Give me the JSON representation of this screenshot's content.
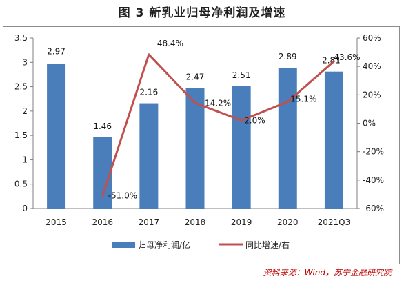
{
  "title": "图 3  新乳业归母净利润及增速",
  "source": "资料来源：Wind，苏宁金融研究院",
  "colors": {
    "bar": "#4a7ebb",
    "line": "#c0504d"
  },
  "chart_data": {
    "type": "bar",
    "categories": [
      "2015",
      "2016",
      "2017",
      "2018",
      "2019",
      "2020",
      "2021Q3"
    ],
    "series": [
      {
        "name": "归母净利润/亿",
        "type": "bar",
        "axis": "left",
        "values": [
          2.97,
          1.46,
          2.16,
          2.47,
          2.51,
          2.89,
          2.81
        ],
        "labels": [
          "2.97",
          "1.46",
          "2.16",
          "2.47",
          "2.51",
          "2.89",
          "2.81"
        ]
      },
      {
        "name": "同比增速/右",
        "type": "line",
        "axis": "right",
        "values": [
          null,
          -51.0,
          48.4,
          14.2,
          2.0,
          15.1,
          43.6
        ],
        "labels": [
          "",
          "-51.0%",
          "48.4%",
          "14.2%",
          "2.0%",
          "15.1%",
          "43.6%"
        ]
      }
    ],
    "ylim_left": [
      0,
      3.5
    ],
    "yticks_left": [
      "0",
      "0.5",
      "1",
      "1.5",
      "2",
      "2.5",
      "3",
      "3.5"
    ],
    "ylim_right": [
      -60,
      60
    ],
    "yticks_right": [
      "-60%",
      "-40%",
      "-20%",
      "0%",
      "20%",
      "40%",
      "60%"
    ],
    "legend_position": "bottom",
    "grid": false
  }
}
